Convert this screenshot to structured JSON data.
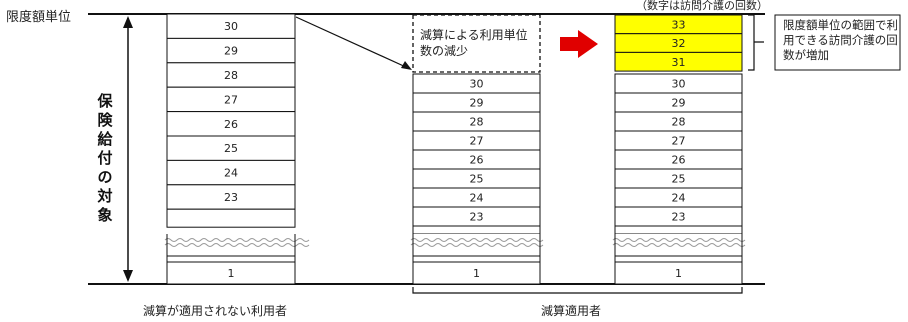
{
  "top_note": "（数字は訪問介護の回数）",
  "limit_label": "限度額単位",
  "vertical_label": "保険給付の対象",
  "col1": {
    "values": [
      "30",
      "29",
      "28",
      "27",
      "26",
      "25",
      "24",
      "23"
    ],
    "bottom": "1",
    "caption": "減算が適用されない利用者"
  },
  "col2": {
    "reduce_text": "減算による利用単位数の減少",
    "values": [
      "30",
      "29",
      "28",
      "27",
      "26",
      "25",
      "24",
      "23"
    ],
    "bottom": "1"
  },
  "col3": {
    "extra": [
      "33",
      "32",
      "31"
    ],
    "values": [
      "30",
      "29",
      "28",
      "27",
      "26",
      "25",
      "24",
      "23"
    ],
    "bottom": "1"
  },
  "right_note": "限度額単位の範囲で利用できる訪問介護の回数が増加",
  "bracket_caption": "減算適用者",
  "colors": {
    "highlight": "#ffff00",
    "arrow": "#e00000"
  }
}
